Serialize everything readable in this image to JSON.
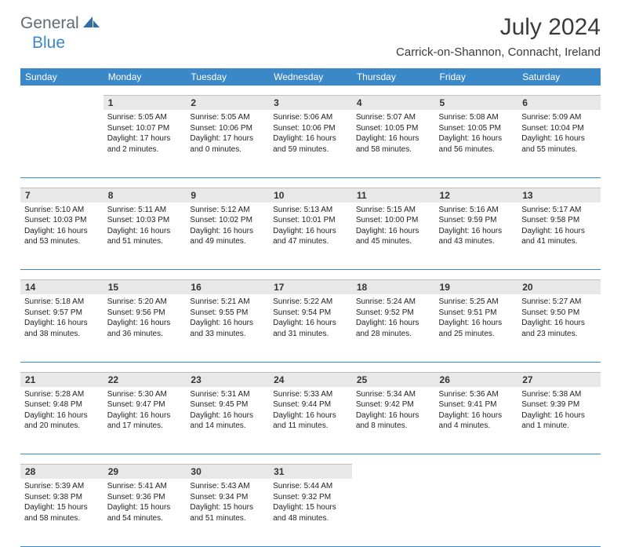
{
  "logo": {
    "part1": "General",
    "part2": "Blue"
  },
  "title": "July 2024",
  "location": "Carrick-on-Shannon, Connacht, Ireland",
  "colors": {
    "header_bg": "#3a88c8",
    "header_text": "#ffffff",
    "daynum_bg": "#e8e8e8",
    "border": "#3a88c8",
    "logo_gray": "#5f6a72",
    "logo_blue": "#3a88c8"
  },
  "dayNames": [
    "Sunday",
    "Monday",
    "Tuesday",
    "Wednesday",
    "Thursday",
    "Friday",
    "Saturday"
  ],
  "weeks": [
    {
      "nums": [
        "",
        "1",
        "2",
        "3",
        "4",
        "5",
        "6"
      ],
      "cells": [
        {
          "sunrise": "",
          "sunset": "",
          "daylight1": "",
          "daylight2": ""
        },
        {
          "sunrise": "Sunrise: 5:05 AM",
          "sunset": "Sunset: 10:07 PM",
          "daylight1": "Daylight: 17 hours",
          "daylight2": "and 2 minutes."
        },
        {
          "sunrise": "Sunrise: 5:05 AM",
          "sunset": "Sunset: 10:06 PM",
          "daylight1": "Daylight: 17 hours",
          "daylight2": "and 0 minutes."
        },
        {
          "sunrise": "Sunrise: 5:06 AM",
          "sunset": "Sunset: 10:06 PM",
          "daylight1": "Daylight: 16 hours",
          "daylight2": "and 59 minutes."
        },
        {
          "sunrise": "Sunrise: 5:07 AM",
          "sunset": "Sunset: 10:05 PM",
          "daylight1": "Daylight: 16 hours",
          "daylight2": "and 58 minutes."
        },
        {
          "sunrise": "Sunrise: 5:08 AM",
          "sunset": "Sunset: 10:05 PM",
          "daylight1": "Daylight: 16 hours",
          "daylight2": "and 56 minutes."
        },
        {
          "sunrise": "Sunrise: 5:09 AM",
          "sunset": "Sunset: 10:04 PM",
          "daylight1": "Daylight: 16 hours",
          "daylight2": "and 55 minutes."
        }
      ]
    },
    {
      "nums": [
        "7",
        "8",
        "9",
        "10",
        "11",
        "12",
        "13"
      ],
      "cells": [
        {
          "sunrise": "Sunrise: 5:10 AM",
          "sunset": "Sunset: 10:03 PM",
          "daylight1": "Daylight: 16 hours",
          "daylight2": "and 53 minutes."
        },
        {
          "sunrise": "Sunrise: 5:11 AM",
          "sunset": "Sunset: 10:03 PM",
          "daylight1": "Daylight: 16 hours",
          "daylight2": "and 51 minutes."
        },
        {
          "sunrise": "Sunrise: 5:12 AM",
          "sunset": "Sunset: 10:02 PM",
          "daylight1": "Daylight: 16 hours",
          "daylight2": "and 49 minutes."
        },
        {
          "sunrise": "Sunrise: 5:13 AM",
          "sunset": "Sunset: 10:01 PM",
          "daylight1": "Daylight: 16 hours",
          "daylight2": "and 47 minutes."
        },
        {
          "sunrise": "Sunrise: 5:15 AM",
          "sunset": "Sunset: 10:00 PM",
          "daylight1": "Daylight: 16 hours",
          "daylight2": "and 45 minutes."
        },
        {
          "sunrise": "Sunrise: 5:16 AM",
          "sunset": "Sunset: 9:59 PM",
          "daylight1": "Daylight: 16 hours",
          "daylight2": "and 43 minutes."
        },
        {
          "sunrise": "Sunrise: 5:17 AM",
          "sunset": "Sunset: 9:58 PM",
          "daylight1": "Daylight: 16 hours",
          "daylight2": "and 41 minutes."
        }
      ]
    },
    {
      "nums": [
        "14",
        "15",
        "16",
        "17",
        "18",
        "19",
        "20"
      ],
      "cells": [
        {
          "sunrise": "Sunrise: 5:18 AM",
          "sunset": "Sunset: 9:57 PM",
          "daylight1": "Daylight: 16 hours",
          "daylight2": "and 38 minutes."
        },
        {
          "sunrise": "Sunrise: 5:20 AM",
          "sunset": "Sunset: 9:56 PM",
          "daylight1": "Daylight: 16 hours",
          "daylight2": "and 36 minutes."
        },
        {
          "sunrise": "Sunrise: 5:21 AM",
          "sunset": "Sunset: 9:55 PM",
          "daylight1": "Daylight: 16 hours",
          "daylight2": "and 33 minutes."
        },
        {
          "sunrise": "Sunrise: 5:22 AM",
          "sunset": "Sunset: 9:54 PM",
          "daylight1": "Daylight: 16 hours",
          "daylight2": "and 31 minutes."
        },
        {
          "sunrise": "Sunrise: 5:24 AM",
          "sunset": "Sunset: 9:52 PM",
          "daylight1": "Daylight: 16 hours",
          "daylight2": "and 28 minutes."
        },
        {
          "sunrise": "Sunrise: 5:25 AM",
          "sunset": "Sunset: 9:51 PM",
          "daylight1": "Daylight: 16 hours",
          "daylight2": "and 25 minutes."
        },
        {
          "sunrise": "Sunrise: 5:27 AM",
          "sunset": "Sunset: 9:50 PM",
          "daylight1": "Daylight: 16 hours",
          "daylight2": "and 23 minutes."
        }
      ]
    },
    {
      "nums": [
        "21",
        "22",
        "23",
        "24",
        "25",
        "26",
        "27"
      ],
      "cells": [
        {
          "sunrise": "Sunrise: 5:28 AM",
          "sunset": "Sunset: 9:48 PM",
          "daylight1": "Daylight: 16 hours",
          "daylight2": "and 20 minutes."
        },
        {
          "sunrise": "Sunrise: 5:30 AM",
          "sunset": "Sunset: 9:47 PM",
          "daylight1": "Daylight: 16 hours",
          "daylight2": "and 17 minutes."
        },
        {
          "sunrise": "Sunrise: 5:31 AM",
          "sunset": "Sunset: 9:45 PM",
          "daylight1": "Daylight: 16 hours",
          "daylight2": "and 14 minutes."
        },
        {
          "sunrise": "Sunrise: 5:33 AM",
          "sunset": "Sunset: 9:44 PM",
          "daylight1": "Daylight: 16 hours",
          "daylight2": "and 11 minutes."
        },
        {
          "sunrise": "Sunrise: 5:34 AM",
          "sunset": "Sunset: 9:42 PM",
          "daylight1": "Daylight: 16 hours",
          "daylight2": "and 8 minutes."
        },
        {
          "sunrise": "Sunrise: 5:36 AM",
          "sunset": "Sunset: 9:41 PM",
          "daylight1": "Daylight: 16 hours",
          "daylight2": "and 4 minutes."
        },
        {
          "sunrise": "Sunrise: 5:38 AM",
          "sunset": "Sunset: 9:39 PM",
          "daylight1": "Daylight: 16 hours",
          "daylight2": "and 1 minute."
        }
      ]
    },
    {
      "nums": [
        "28",
        "29",
        "30",
        "31",
        "",
        "",
        ""
      ],
      "cells": [
        {
          "sunrise": "Sunrise: 5:39 AM",
          "sunset": "Sunset: 9:38 PM",
          "daylight1": "Daylight: 15 hours",
          "daylight2": "and 58 minutes."
        },
        {
          "sunrise": "Sunrise: 5:41 AM",
          "sunset": "Sunset: 9:36 PM",
          "daylight1": "Daylight: 15 hours",
          "daylight2": "and 54 minutes."
        },
        {
          "sunrise": "Sunrise: 5:43 AM",
          "sunset": "Sunset: 9:34 PM",
          "daylight1": "Daylight: 15 hours",
          "daylight2": "and 51 minutes."
        },
        {
          "sunrise": "Sunrise: 5:44 AM",
          "sunset": "Sunset: 9:32 PM",
          "daylight1": "Daylight: 15 hours",
          "daylight2": "and 48 minutes."
        },
        {
          "sunrise": "",
          "sunset": "",
          "daylight1": "",
          "daylight2": ""
        },
        {
          "sunrise": "",
          "sunset": "",
          "daylight1": "",
          "daylight2": ""
        },
        {
          "sunrise": "",
          "sunset": "",
          "daylight1": "",
          "daylight2": ""
        }
      ]
    }
  ]
}
